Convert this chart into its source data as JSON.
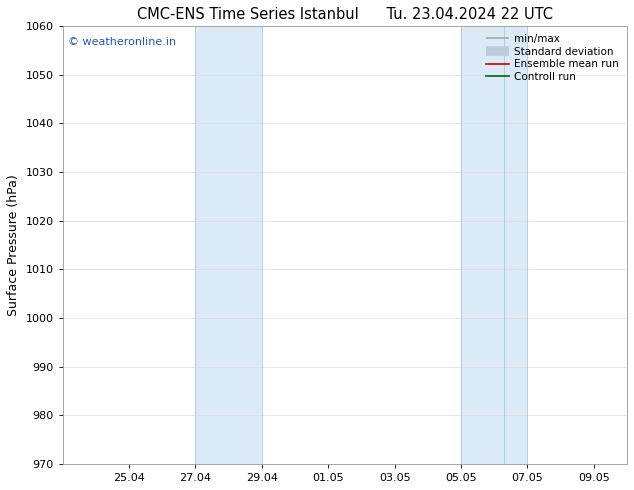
{
  "title_left": "CMC-ENS Time Series Istanbul",
  "title_right": "Tu. 23.04.2024 22 UTC",
  "ylabel": "Surface Pressure (hPa)",
  "ylim": [
    970,
    1060
  ],
  "yticks": [
    970,
    980,
    990,
    1000,
    1010,
    1020,
    1030,
    1040,
    1050,
    1060
  ],
  "xlim": [
    0,
    17
  ],
  "xtick_positions": [
    2,
    4,
    6,
    8,
    10,
    12,
    14,
    16
  ],
  "xtick_labels": [
    "25.04",
    "27.04",
    "29.04",
    "01.05",
    "03.05",
    "05.05",
    "07.05",
    "09.05"
  ],
  "shaded_regions": [
    {
      "x_start": 4.0,
      "x_end": 6.0,
      "color": "#daeaf6"
    },
    {
      "x_start": 12.0,
      "x_end": 13.3,
      "color": "#daeaf6"
    },
    {
      "x_start": 13.3,
      "x_end": 14.0,
      "color": "#daeaf6"
    }
  ],
  "shade_border_color": "#aac8e0",
  "watermark": "© weatheronline.in",
  "watermark_color": "#2255bb",
  "legend_items": [
    {
      "label": "min/max",
      "color": "#aaaaaa",
      "lw": 1.2
    },
    {
      "label": "Standard deviation",
      "color": "#bbccdd",
      "lw": 7
    },
    {
      "label": "Ensemble mean run",
      "color": "#cc0000",
      "lw": 1.2
    },
    {
      "label": "Controll run",
      "color": "#006600",
      "lw": 1.2
    }
  ],
  "bg_color": "#ffffff",
  "plot_bg_color": "#ffffff",
  "grid_color": "#dddddd",
  "spine_color": "#999999",
  "title_fontsize": 10.5,
  "ylabel_fontsize": 9,
  "tick_fontsize": 8,
  "legend_fontsize": 7.5,
  "watermark_fontsize": 8
}
